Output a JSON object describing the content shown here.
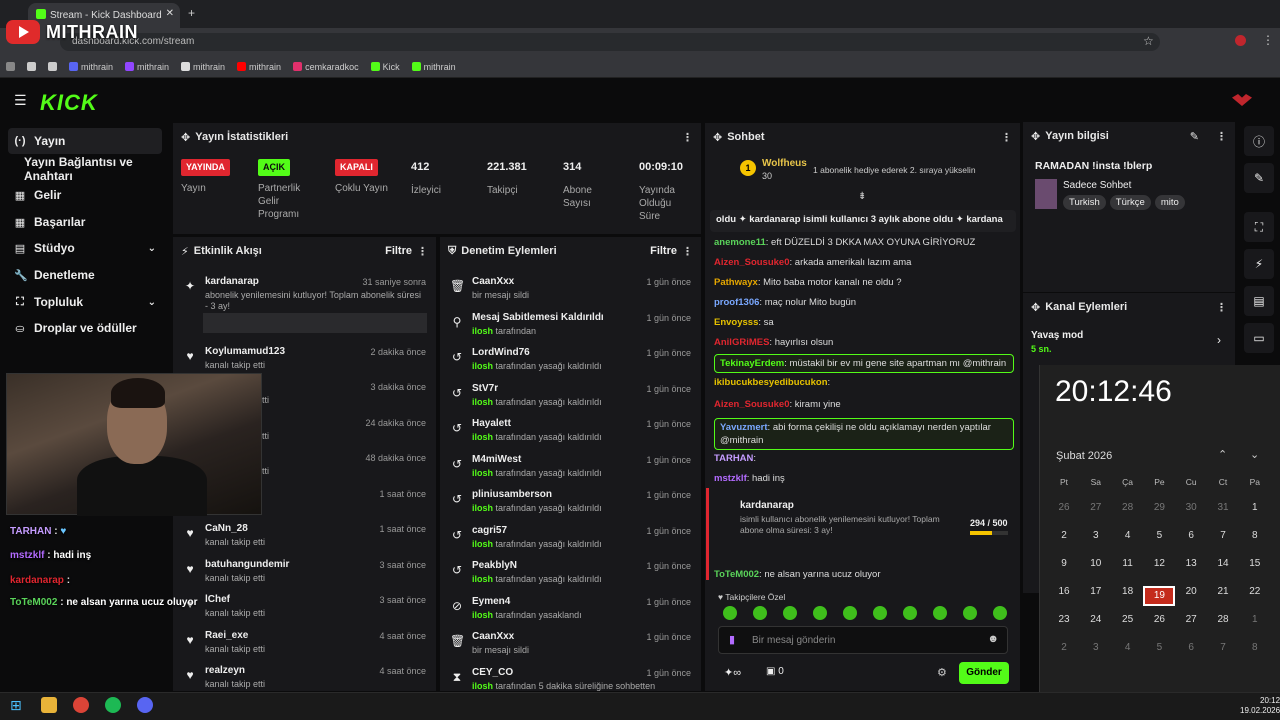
{
  "browser": {
    "tab_title": "Stream - Kick Dashboard",
    "url": "dashboard.kick.com/stream",
    "overlay_logo": "MITHRAIN",
    "bookmarks": [
      "mithrain",
      "mithrain",
      "mithrain",
      "mithrain",
      "cemkaradkoc",
      "Kick",
      "mithrain"
    ]
  },
  "header": {
    "logo": "KICK"
  },
  "sidebar": {
    "items": [
      {
        "label": "Yayın",
        "icon": "(·)"
      },
      {
        "label": "Yayın Bağlantısı ve Anahtarı"
      },
      {
        "label": "Gelir",
        "icon": "▦"
      },
      {
        "label": "Başarılar",
        "icon": "▦"
      },
      {
        "label": "Stüdyo",
        "icon": "▤",
        "chevron": "⌄"
      },
      {
        "label": "Denetleme",
        "icon": "🔧"
      },
      {
        "label": "Topluluk",
        "icon": "⛶",
        "chevron": "⌄"
      },
      {
        "label": "Droplar ve ödüller",
        "icon": "⛀"
      }
    ]
  },
  "stats": {
    "title": "Yayın İstatistikleri",
    "items": [
      {
        "badge": "YAYINDA",
        "label": "Yayın"
      },
      {
        "badge": "AÇIK",
        "label": "Partnerlik Gelir Programı"
      },
      {
        "badge": "KAPALI",
        "label": "Çoklu Yayın"
      },
      {
        "value": "412",
        "label": "İzleyici"
      },
      {
        "value": "221.381",
        "label": "Takipçi"
      },
      {
        "value": "314",
        "label": "Abone Sayısı"
      },
      {
        "value": "00:09:10",
        "label": "Yayında Olduğu Süre"
      }
    ],
    "colors": {
      "red": "#e0262f",
      "green": "#53fc18"
    }
  },
  "activity": {
    "title": "Etkinlik Akışı",
    "filter": "Filtre",
    "items": [
      {
        "name": "kardanarap",
        "sub": "abonelik yenilemesini kutluyor! Toplam abonelik süresi - 3 ay!",
        "time": "31 saniye sonra",
        "icon": "star"
      },
      {
        "name": "Koylumamud123",
        "sub": "kanalı takip etti",
        "time": "2 dakika önce"
      },
      {
        "name": "",
        "sub": "etti",
        "time": "3 dakika önce"
      },
      {
        "name": "",
        "sub": "etti",
        "time": "24 dakika önce"
      },
      {
        "name": "",
        "sub": "etti",
        "time": "48 dakika önce"
      },
      {
        "name": "",
        "sub": "",
        "time": "1 saat önce"
      },
      {
        "name": "CaNn_28",
        "sub": "kanalı takip etti",
        "time": "1 saat önce"
      },
      {
        "name": "batuhangundemir",
        "sub": "kanalı takip etti",
        "time": "3 saat önce"
      },
      {
        "name": "lChef",
        "sub": "kanalı takip etti",
        "time": "3 saat önce"
      },
      {
        "name": "Raei_exe",
        "sub": "kanalı takip etti",
        "time": "4 saat önce"
      },
      {
        "name": "realzeyn",
        "sub": "kanalı takip etti",
        "time": "4 saat önce"
      }
    ]
  },
  "moderation": {
    "title": "Denetim Eylemleri",
    "filter": "Filtre",
    "items": [
      {
        "name": "CaanXxx",
        "who": "",
        "sub": "bir mesajı sildi",
        "time": "1 gün önce",
        "icon": "🗑"
      },
      {
        "name": "Mesaj Sabitlemesi Kaldırıldı",
        "who": "ilosh",
        "sub": "tarafından",
        "time": "1 gün önce",
        "icon": "⚲"
      },
      {
        "name": "LordWind76",
        "who": "ilosh",
        "sub": "tarafından yasağı kaldırıldı",
        "time": "1 gün önce",
        "icon": "↺"
      },
      {
        "name": "StV7r",
        "who": "ilosh",
        "sub": "tarafından yasağı kaldırıldı",
        "time": "1 gün önce",
        "icon": "↺"
      },
      {
        "name": "Hayalett",
        "who": "ilosh",
        "sub": "tarafından yasağı kaldırıldı",
        "time": "1 gün önce",
        "icon": "↺"
      },
      {
        "name": "M4miWest",
        "who": "ilosh",
        "sub": "tarafından yasağı kaldırıldı",
        "time": "1 gün önce",
        "icon": "↺"
      },
      {
        "name": "pliniusamberson",
        "who": "ilosh",
        "sub": "tarafından yasağı kaldırıldı",
        "time": "1 gün önce",
        "icon": "↺"
      },
      {
        "name": "cagri57",
        "who": "ilosh",
        "sub": "tarafından yasağı kaldırıldı",
        "time": "1 gün önce",
        "icon": "↺"
      },
      {
        "name": "PeakblyN",
        "who": "ilosh",
        "sub": "tarafından yasağı kaldırıldı",
        "time": "1 gün önce",
        "icon": "↺"
      },
      {
        "name": "Eymen4",
        "who": "ilosh",
        "sub": "tarafından yasaklandı",
        "time": "1 gün önce",
        "icon": "⊘"
      },
      {
        "name": "CaanXxx",
        "who": "",
        "sub": "bir mesajı sildi",
        "time": "1 gün önce",
        "icon": "🗑"
      },
      {
        "name": "CEY_CO",
        "who": "ilosh",
        "sub": "tarafından 5 dakika süreliğine sohbetten",
        "time": "1 gün önce",
        "icon": "⧗"
      }
    ]
  },
  "chat": {
    "title": "Sohbet",
    "gift_user": "Wolfheus",
    "gift_count": "30",
    "gift_text": "1 abonelik hediye ederek 2. sıraya yükselin",
    "pinned": "oldu ✦ kardanarap isimli kullanıcı 3 aylık abone oldu ✦ kardana",
    "messages": [
      {
        "user": "anemone11",
        "color": "#5ad35a",
        "text": "eft DÜZELDİ 3 DKKA MAX OYUNA GİRİYORUZ"
      },
      {
        "user": "Aizen_Sousuke0",
        "color": "#e0262f",
        "text": "arkada amerikalı lazım ama"
      },
      {
        "user": "Pathwayx",
        "color": "#e6a700",
        "text": "Mito baba motor kanalı ne oldu ?"
      },
      {
        "user": "proof1306",
        "color": "#7aa8ff",
        "text": "maç nolur Mito bugün"
      },
      {
        "user": "Envoysss",
        "color": "#e6c200",
        "text": "sa"
      },
      {
        "user": "AnilGRiMES",
        "color": "#e0262f",
        "text": "hayırlısı olsun"
      },
      {
        "user": "TekinayErdem",
        "color": "#53fc18",
        "text": "müstakil bir ev mi gene site apartman mı @mithrain"
      },
      {
        "user": "ikibucukbesyedibucukon",
        "color": "#e6c200",
        "text": ""
      },
      {
        "user": "Aizen_Sousuke0",
        "color": "#e0262f",
        "text": "kiramı yine"
      },
      {
        "user": "Yavuzmert",
        "color": "#7aa8ff",
        "text": "abi forma çekilişi ne oldu açıklamayı nerden yaptılar @mithrain"
      },
      {
        "user": "TARHAN",
        "color": "#c59cff",
        "text": ""
      },
      {
        "user": "mstzklf",
        "color": "#b36bff",
        "text": "hadi inş"
      },
      {
        "user": "ToTeM002",
        "color": "#5ad35a",
        "text": "ne alsan yarına ucuz oluyor"
      }
    ],
    "sub_card": {
      "user": "kardanarap",
      "text": "isimli kullanıcı abonelik yenilemesini kutluyor! Toplam abone olma süresi: 3 ay!",
      "progress": "294",
      "goal": "500",
      "progress_fraction": 0.588
    },
    "followers_only": "Takipçilere Özel",
    "placeholder": "Bir mesaj gönderin",
    "points": "0",
    "send": "Gönder"
  },
  "stream_info": {
    "title": "Yayın bilgisi",
    "stream_title": "RAMADAN !insta !blerp",
    "category": "Sadece Sohbet",
    "tags": [
      "Turkish",
      "Türkçe",
      "mito"
    ]
  },
  "channel_actions": {
    "title": "Kanal Eylemleri",
    "slow_mode": "Yavaş mod",
    "slow_value": "5 sn."
  },
  "cam_overlay_chat": [
    {
      "user": "TARHAN",
      "text": "",
      "color": "#c59cff"
    },
    {
      "user": "mstzklf",
      "text": "hadi inş",
      "color": "#b36bff"
    },
    {
      "user": "kardanarap",
      "text": "",
      "color": "#e0262f"
    },
    {
      "user": "ToTeM002",
      "text": "ne alsan yarına ucuz oluyor",
      "color": "#5ad35a"
    }
  ],
  "calendar": {
    "time": "20:12:46",
    "month": "Şubat 2026",
    "weekdays": [
      "Pt",
      "Sa",
      "Ça",
      "Pe",
      "Cu",
      "Ct",
      "Pa"
    ],
    "today": "19",
    "days": [
      "26",
      "27",
      "28",
      "29",
      "30",
      "31",
      "1",
      "2",
      "3",
      "4",
      "5",
      "6",
      "7",
      "8",
      "9",
      "10",
      "11",
      "12",
      "13",
      "14",
      "15",
      "16",
      "17",
      "18",
      "19",
      "20",
      "21",
      "22",
      "23",
      "24",
      "25",
      "26",
      "27",
      "28",
      "1",
      "2",
      "3",
      "4",
      "5",
      "6",
      "7",
      "8"
    ]
  },
  "taskbar": {
    "time": "20:12",
    "date": "19.02.2026"
  }
}
